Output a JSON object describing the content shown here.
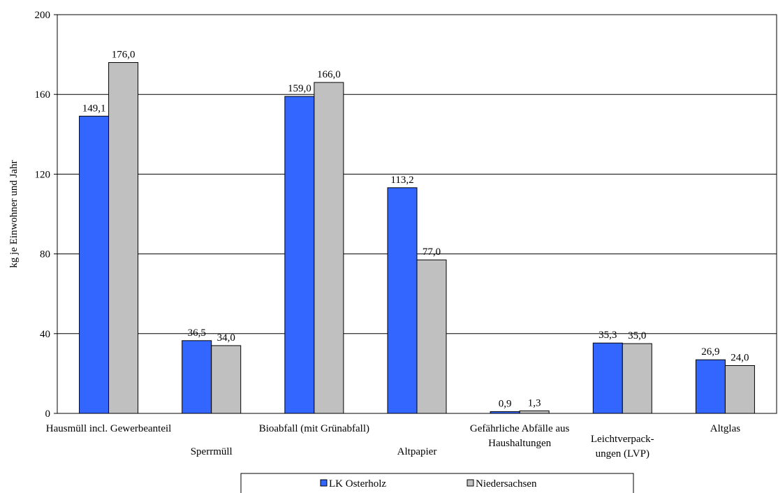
{
  "chart_data": {
    "type": "bar",
    "ylabel": "kg je Einwohner und Jahr",
    "ylim": [
      0,
      200
    ],
    "yticks": [
      0,
      40,
      80,
      120,
      160,
      200
    ],
    "grid": true,
    "legend_position": "bottom",
    "categories": [
      [
        "Hausmüll incl. Gewerbeanteil"
      ],
      [
        "Sperrmüll"
      ],
      [
        "Bioabfall (mit Grünabfall)"
      ],
      [
        "Altpapier"
      ],
      [
        "Gefährliche Abfälle aus",
        "Haushaltungen"
      ],
      [
        "Leichtverpack-",
        "ungen (LVP)"
      ],
      [
        "Altglas"
      ]
    ],
    "series": [
      {
        "name": "LK Osterholz",
        "color": "#3366ff",
        "values": [
          149.1,
          36.5,
          159.0,
          113.2,
          0.9,
          35.3,
          26.9
        ],
        "labels": [
          "149,1",
          "36,5",
          "159,0",
          "113,2",
          "0,9",
          "35,3",
          "26,9"
        ]
      },
      {
        "name": "Niedersachsen",
        "color": "#c0c0c0",
        "values": [
          176.0,
          34.0,
          166.0,
          77.0,
          1.3,
          35.0,
          24.0
        ],
        "labels": [
          "176,0",
          "34,0",
          "166,0",
          "77,0",
          "1,3",
          "35,0",
          "24,0"
        ]
      }
    ]
  }
}
